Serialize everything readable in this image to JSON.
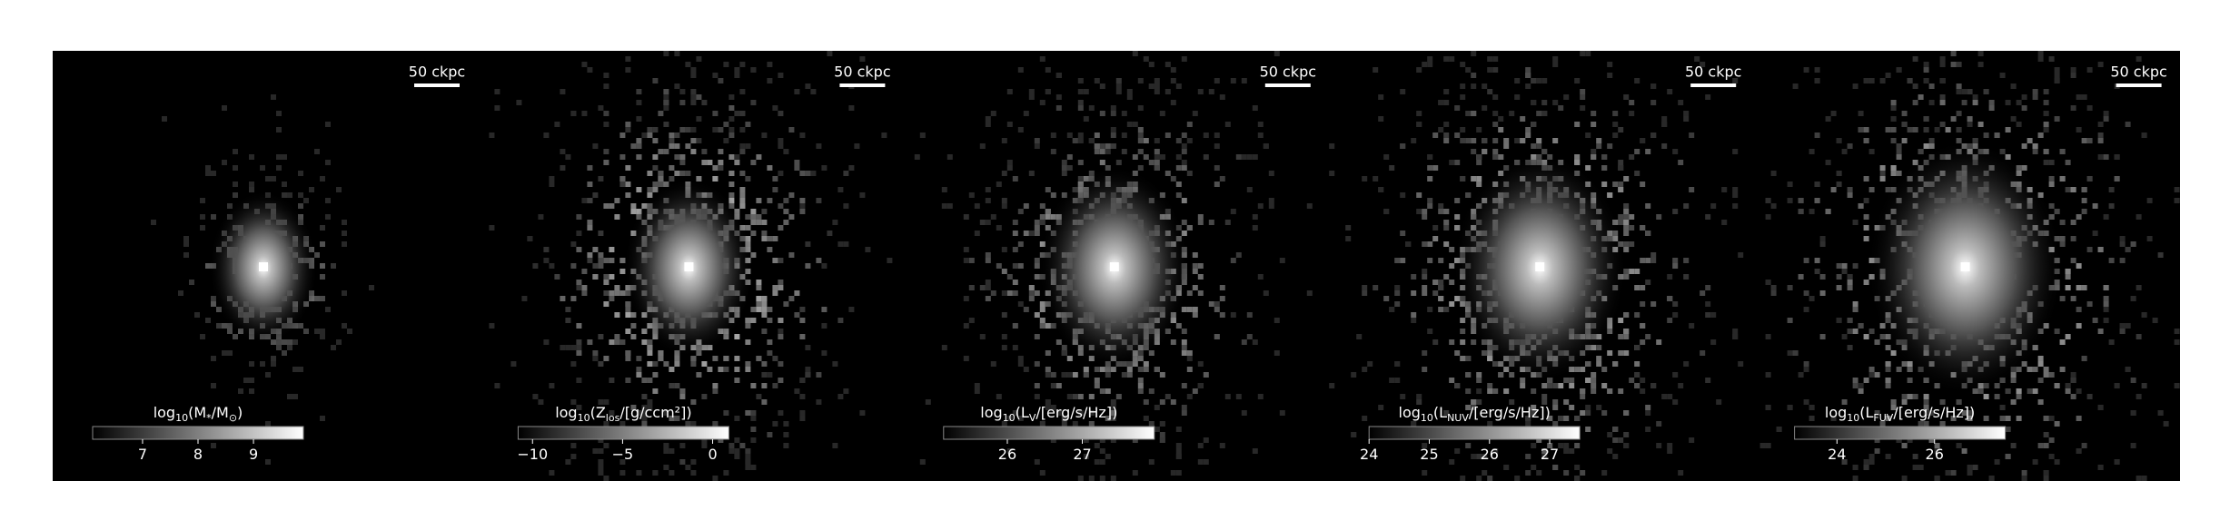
{
  "panels": [
    {
      "scale_label": "50 ckpc",
      "colorbar": {
        "label": [
          {
            "t": "log"
          },
          {
            "t": "10",
            "sub": true
          },
          {
            "t": "(M"
          },
          {
            "t": "*",
            "sub": true
          },
          {
            "t": "/M"
          },
          {
            "t": "⊙",
            "sub": true
          },
          {
            "t": ")"
          }
        ],
        "lim": [
          6.1,
          9.9
        ],
        "ticks": [
          7,
          8,
          9
        ]
      }
    },
    {
      "scale_label": "50 ckpc",
      "colorbar": {
        "label": [
          {
            "t": "log"
          },
          {
            "t": "10",
            "sub": true
          },
          {
            "t": "(Z"
          },
          {
            "t": "los",
            "sub": true
          },
          {
            "t": "/[g/ccm²])"
          }
        ],
        "lim": [
          -10.8,
          0.9
        ],
        "ticks": [
          {
            "value": -10,
            "label": "−10"
          },
          {
            "value": -5,
            "label": "−5"
          },
          0
        ]
      }
    },
    {
      "scale_label": "50 ckpc",
      "colorbar": {
        "label": [
          {
            "t": "log"
          },
          {
            "t": "10",
            "sub": true
          },
          {
            "t": "(L"
          },
          {
            "t": "V",
            "sub": true
          },
          {
            "t": "/[erg/s/Hz])"
          }
        ],
        "lim": [
          25.15,
          27.96
        ],
        "ticks": [
          26,
          27
        ]
      }
    },
    {
      "scale_label": "50 ckpc",
      "colorbar": {
        "label": [
          {
            "t": "log"
          },
          {
            "t": "10",
            "sub": true
          },
          {
            "t": "(L"
          },
          {
            "t": "NUV",
            "sub": true
          },
          {
            "t": "/[erg/s/Hz])"
          }
        ],
        "lim": [
          24.0,
          27.5
        ],
        "ticks": [
          24,
          25,
          26,
          27
        ]
      }
    },
    {
      "scale_label": "50 ckpc",
      "colorbar": {
        "label": [
          {
            "t": "log"
          },
          {
            "t": "10",
            "sub": true
          },
          {
            "t": "(L"
          },
          {
            "t": "FUV",
            "sub": true
          },
          {
            "t": "/[erg/s/Hz])"
          }
        ],
        "lim": [
          23.13,
          27.45
        ],
        "ticks": [
          24,
          26
        ]
      }
    }
  ]
}
